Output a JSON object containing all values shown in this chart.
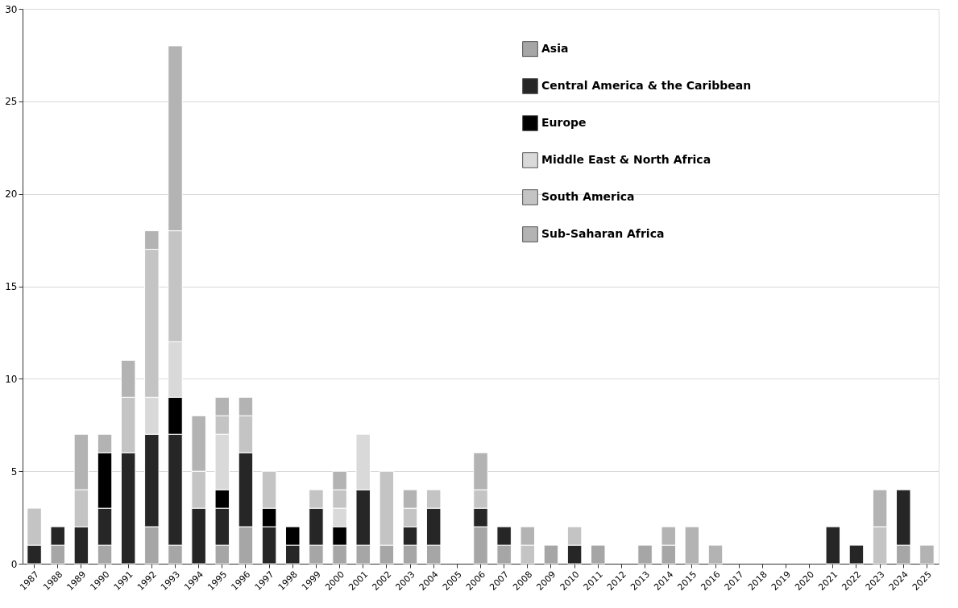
{
  "chart_data": {
    "type": "bar",
    "stacked": true,
    "categories": [
      "1987",
      "1988",
      "1989",
      "1990",
      "1991",
      "1992",
      "1993",
      "1994",
      "1995",
      "1996",
      "1997",
      "1998",
      "1999",
      "2000",
      "2001",
      "2002",
      "2003",
      "2004",
      "2005",
      "2006",
      "2007",
      "2008",
      "2009",
      "2010",
      "2011",
      "2012",
      "2013",
      "2014",
      "2015",
      "2016",
      "2017",
      "2018",
      "2019",
      "2020",
      "2021",
      "2022",
      "2023",
      "2024",
      "2025"
    ],
    "series": [
      {
        "name": "Asia",
        "color": "#a6a6a6",
        "values": [
          0,
          1,
          0,
          1,
          0,
          2,
          1,
          0,
          1,
          2,
          0,
          0,
          1,
          1,
          1,
          1,
          1,
          1,
          0,
          2,
          1,
          0,
          1,
          0,
          1,
          0,
          1,
          1,
          0,
          0,
          0,
          0,
          0,
          0,
          0,
          0,
          0,
          1,
          0
        ]
      },
      {
        "name": "Central America & the Caribbean",
        "color": "#262626",
        "values": [
          1,
          1,
          2,
          2,
          6,
          5,
          6,
          3,
          2,
          4,
          2,
          1,
          2,
          0,
          3,
          0,
          1,
          2,
          0,
          1,
          1,
          0,
          0,
          1,
          0,
          0,
          0,
          0,
          0,
          0,
          0,
          0,
          0,
          0,
          2,
          1,
          0,
          3,
          0
        ]
      },
      {
        "name": "Europe",
        "color": "#000000",
        "values": [
          0,
          0,
          0,
          3,
          0,
          0,
          2,
          0,
          1,
          0,
          1,
          1,
          0,
          1,
          0,
          0,
          0,
          0,
          0,
          0,
          0,
          0,
          0,
          0,
          0,
          0,
          0,
          0,
          0,
          0,
          0,
          0,
          0,
          0,
          0,
          0,
          0,
          0,
          0
        ]
      },
      {
        "name": "Middle East & North Africa",
        "color": "#d9d9d9",
        "values": [
          0,
          0,
          0,
          0,
          0,
          2,
          3,
          0,
          3,
          0,
          0,
          0,
          0,
          1,
          3,
          0,
          0,
          0,
          0,
          0,
          0,
          0,
          0,
          0,
          0,
          0,
          0,
          0,
          0,
          0,
          0,
          0,
          0,
          0,
          0,
          0,
          0,
          0,
          0
        ]
      },
      {
        "name": "South America",
        "color": "#c4c4c4",
        "values": [
          2,
          0,
          2,
          0,
          3,
          8,
          6,
          2,
          1,
          2,
          2,
          0,
          1,
          1,
          0,
          4,
          1,
          1,
          0,
          1,
          0,
          1,
          0,
          1,
          0,
          0,
          0,
          0,
          0,
          0,
          0,
          0,
          0,
          0,
          0,
          0,
          2,
          0,
          0
        ]
      },
      {
        "name": "Sub-Saharan Africa",
        "color": "#b3b3b3",
        "values": [
          0,
          0,
          3,
          1,
          2,
          1,
          10,
          3,
          1,
          1,
          0,
          0,
          0,
          1,
          0,
          0,
          1,
          0,
          0,
          2,
          0,
          1,
          0,
          0,
          0,
          0,
          0,
          1,
          2,
          1,
          0,
          0,
          0,
          0,
          0,
          0,
          2,
          0,
          1
        ]
      }
    ],
    "ylim": [
      0,
      30
    ],
    "yticks": [
      0,
      5,
      10,
      15,
      20,
      25,
      30
    ],
    "grid": "y",
    "legend": "top right"
  }
}
